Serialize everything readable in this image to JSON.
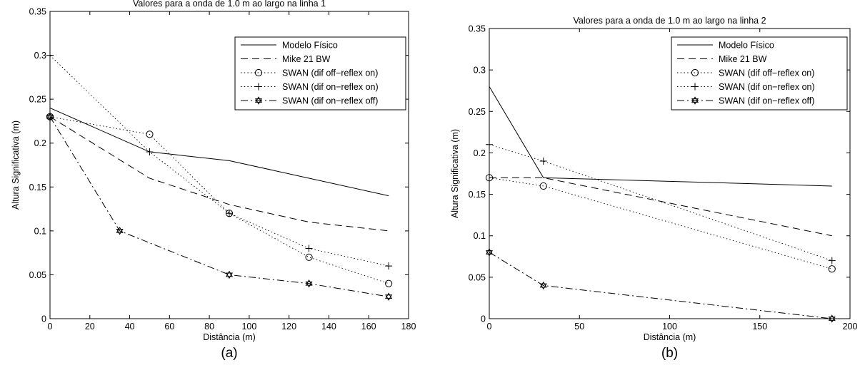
{
  "chart_data": [
    {
      "type": "line",
      "title": "Valores para a onda de 1.0 m ao largo na linha 1",
      "xlabel": "Distância (m)",
      "ylabel": "Altura Significativa (m)",
      "subplot_label": "(a)",
      "xlim": [
        0,
        180
      ],
      "ylim": [
        0,
        0.35
      ],
      "xticks": [
        "0",
        "20",
        "40",
        "60",
        "80",
        "100",
        "120",
        "140",
        "160",
        "180"
      ],
      "yticks": [
        "0",
        "0.05",
        "0.1",
        "0.15",
        "0.2",
        "0.25",
        "0.3",
        "0.35"
      ],
      "grid": false,
      "legend_position": "top-right",
      "series": [
        {
          "name": "Modelo Físico",
          "style": "solid",
          "marker": "none",
          "x": [
            0,
            50,
            90,
            130,
            170
          ],
          "y": [
            0.24,
            0.19,
            0.18,
            0.16,
            0.14
          ]
        },
        {
          "name": "Mike 21 BW",
          "style": "dashed",
          "marker": "none",
          "x": [
            0,
            50,
            90,
            130,
            170
          ],
          "y": [
            0.23,
            0.16,
            0.13,
            0.11,
            0.1
          ]
        },
        {
          "name": "SWAN (dif off−reflex on)",
          "style": "dotted",
          "marker": "circle",
          "x": [
            0,
            50,
            90,
            130,
            170
          ],
          "y": [
            0.23,
            0.21,
            0.12,
            0.07,
            0.04
          ]
        },
        {
          "name": "SWAN (dif on−reflex on)",
          "style": "dotted",
          "marker": "plus",
          "x": [
            0,
            50,
            90,
            130,
            170
          ],
          "y": [
            0.3,
            0.19,
            0.12,
            0.08,
            0.06
          ]
        },
        {
          "name": "SWAN (dif on−reflex off)",
          "style": "dashdot",
          "marker": "hexagram",
          "x": [
            0,
            35,
            90,
            130,
            170
          ],
          "y": [
            0.23,
            0.1,
            0.05,
            0.04,
            0.025
          ]
        }
      ]
    },
    {
      "type": "line",
      "title": "Valores para a onda de 1.0 m ao largo na linha 2",
      "xlabel": "Distância (m)",
      "ylabel": "Altura Significativa (m)",
      "subplot_label": "(b)",
      "xlim": [
        0,
        200
      ],
      "ylim": [
        0,
        0.35
      ],
      "xticks": [
        "0",
        "50",
        "100",
        "150",
        "200"
      ],
      "yticks": [
        "0",
        "0.05",
        "0.1",
        "0.15",
        "0.2",
        "0.25",
        "0.3",
        "0.35"
      ],
      "grid": false,
      "legend_position": "top-right",
      "series": [
        {
          "name": "Modelo Físico",
          "style": "solid",
          "marker": "none",
          "x": [
            0,
            30,
            190
          ],
          "y": [
            0.28,
            0.17,
            0.16
          ]
        },
        {
          "name": "Mike 21 BW",
          "style": "dashed",
          "marker": "none",
          "x": [
            0,
            30,
            190
          ],
          "y": [
            0.17,
            0.17,
            0.1
          ]
        },
        {
          "name": "SWAN (dif off−reflex on)",
          "style": "dotted",
          "marker": "circle",
          "x": [
            0,
            30,
            190
          ],
          "y": [
            0.17,
            0.16,
            0.06
          ]
        },
        {
          "name": "SWAN (dif on−reflex on)",
          "style": "dotted",
          "marker": "plus",
          "x": [
            0,
            30,
            190
          ],
          "y": [
            0.21,
            0.19,
            0.07
          ]
        },
        {
          "name": "SWAN (dif on−reflex off)",
          "style": "dashdot",
          "marker": "hexagram",
          "x": [
            0,
            30,
            190
          ],
          "y": [
            0.08,
            0.04,
            0.0
          ]
        }
      ]
    }
  ]
}
